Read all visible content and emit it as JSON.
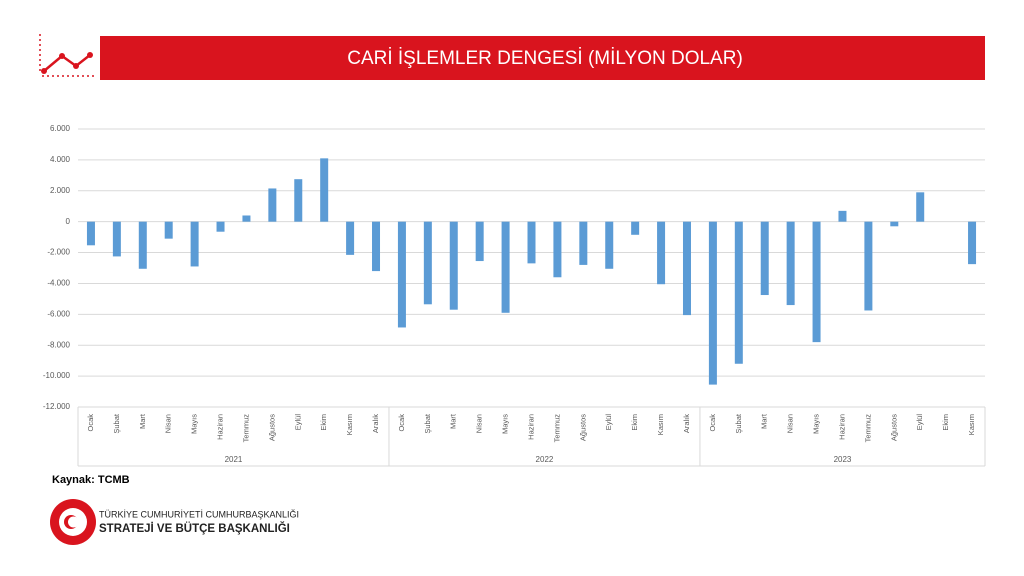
{
  "chart_data": {
    "type": "bar",
    "title": "CARİ İŞLEMLER DENGESİ (MİLYON DOLAR)",
    "groups": [
      {
        "label": "2021",
        "categories": [
          "Ocak",
          "Şubat",
          "Mart",
          "Nisan",
          "Mayıs",
          "Haziran",
          "Temmuz",
          "Ağustos",
          "Eylül",
          "Ekim",
          "Kasım",
          "Aralık"
        ]
      },
      {
        "label": "2022",
        "categories": [
          "Ocak",
          "Şubat",
          "Mart",
          "Nisan",
          "Mayıs",
          "Haziran",
          "Temmuz",
          "Ağustos",
          "Eylül",
          "Ekim",
          "Kasım",
          "Aralık"
        ]
      },
      {
        "label": "2023",
        "categories": [
          "Ocak",
          "Şubat",
          "Mart",
          "Nisan",
          "Mayıs",
          "Haziran",
          "Temmuz",
          "Ağustos",
          "Eylül",
          "Ekim",
          "Kasım"
        ]
      }
    ],
    "values": [
      -1530,
      -2250,
      -3050,
      -1100,
      -2900,
      -650,
      400,
      2150,
      2750,
      4100,
      -2150,
      -3200,
      -6850,
      -5350,
      -5700,
      -2550,
      -5900,
      -2700,
      -3600,
      -2800,
      -3050,
      -850,
      -4050,
      -6050,
      -10550,
      -9200,
      -4750,
      -5400,
      -7800,
      700,
      -5750,
      -300,
      1900,
      null,
      -2750
    ],
    "color": "#5b9bd5",
    "ylim": [
      -12000,
      6000
    ],
    "yticks": [
      {
        "value": -12000,
        "label": "-12.000"
      },
      {
        "value": -10000,
        "label": "-10.000"
      },
      {
        "value": -8000,
        "label": "-8.000"
      },
      {
        "value": -6000,
        "label": "-6.000"
      },
      {
        "value": -4000,
        "label": "-4.000"
      },
      {
        "value": -2000,
        "label": "-2.000"
      },
      0,
      {
        "value": 2000,
        "label": "2.000"
      },
      {
        "value": 4000,
        "label": "4.000"
      },
      {
        "value": 6000,
        "label": "6.000"
      }
    ],
    "grid": true,
    "source": "Kaynak: TCMB"
  },
  "footer": {
    "line1": "TÜRKİYE CUMHURİYETİ CUMHURBAŞKANLIĞI",
    "line2": "STRATEJİ VE BÜTÇE BAŞKANLIĞI"
  }
}
